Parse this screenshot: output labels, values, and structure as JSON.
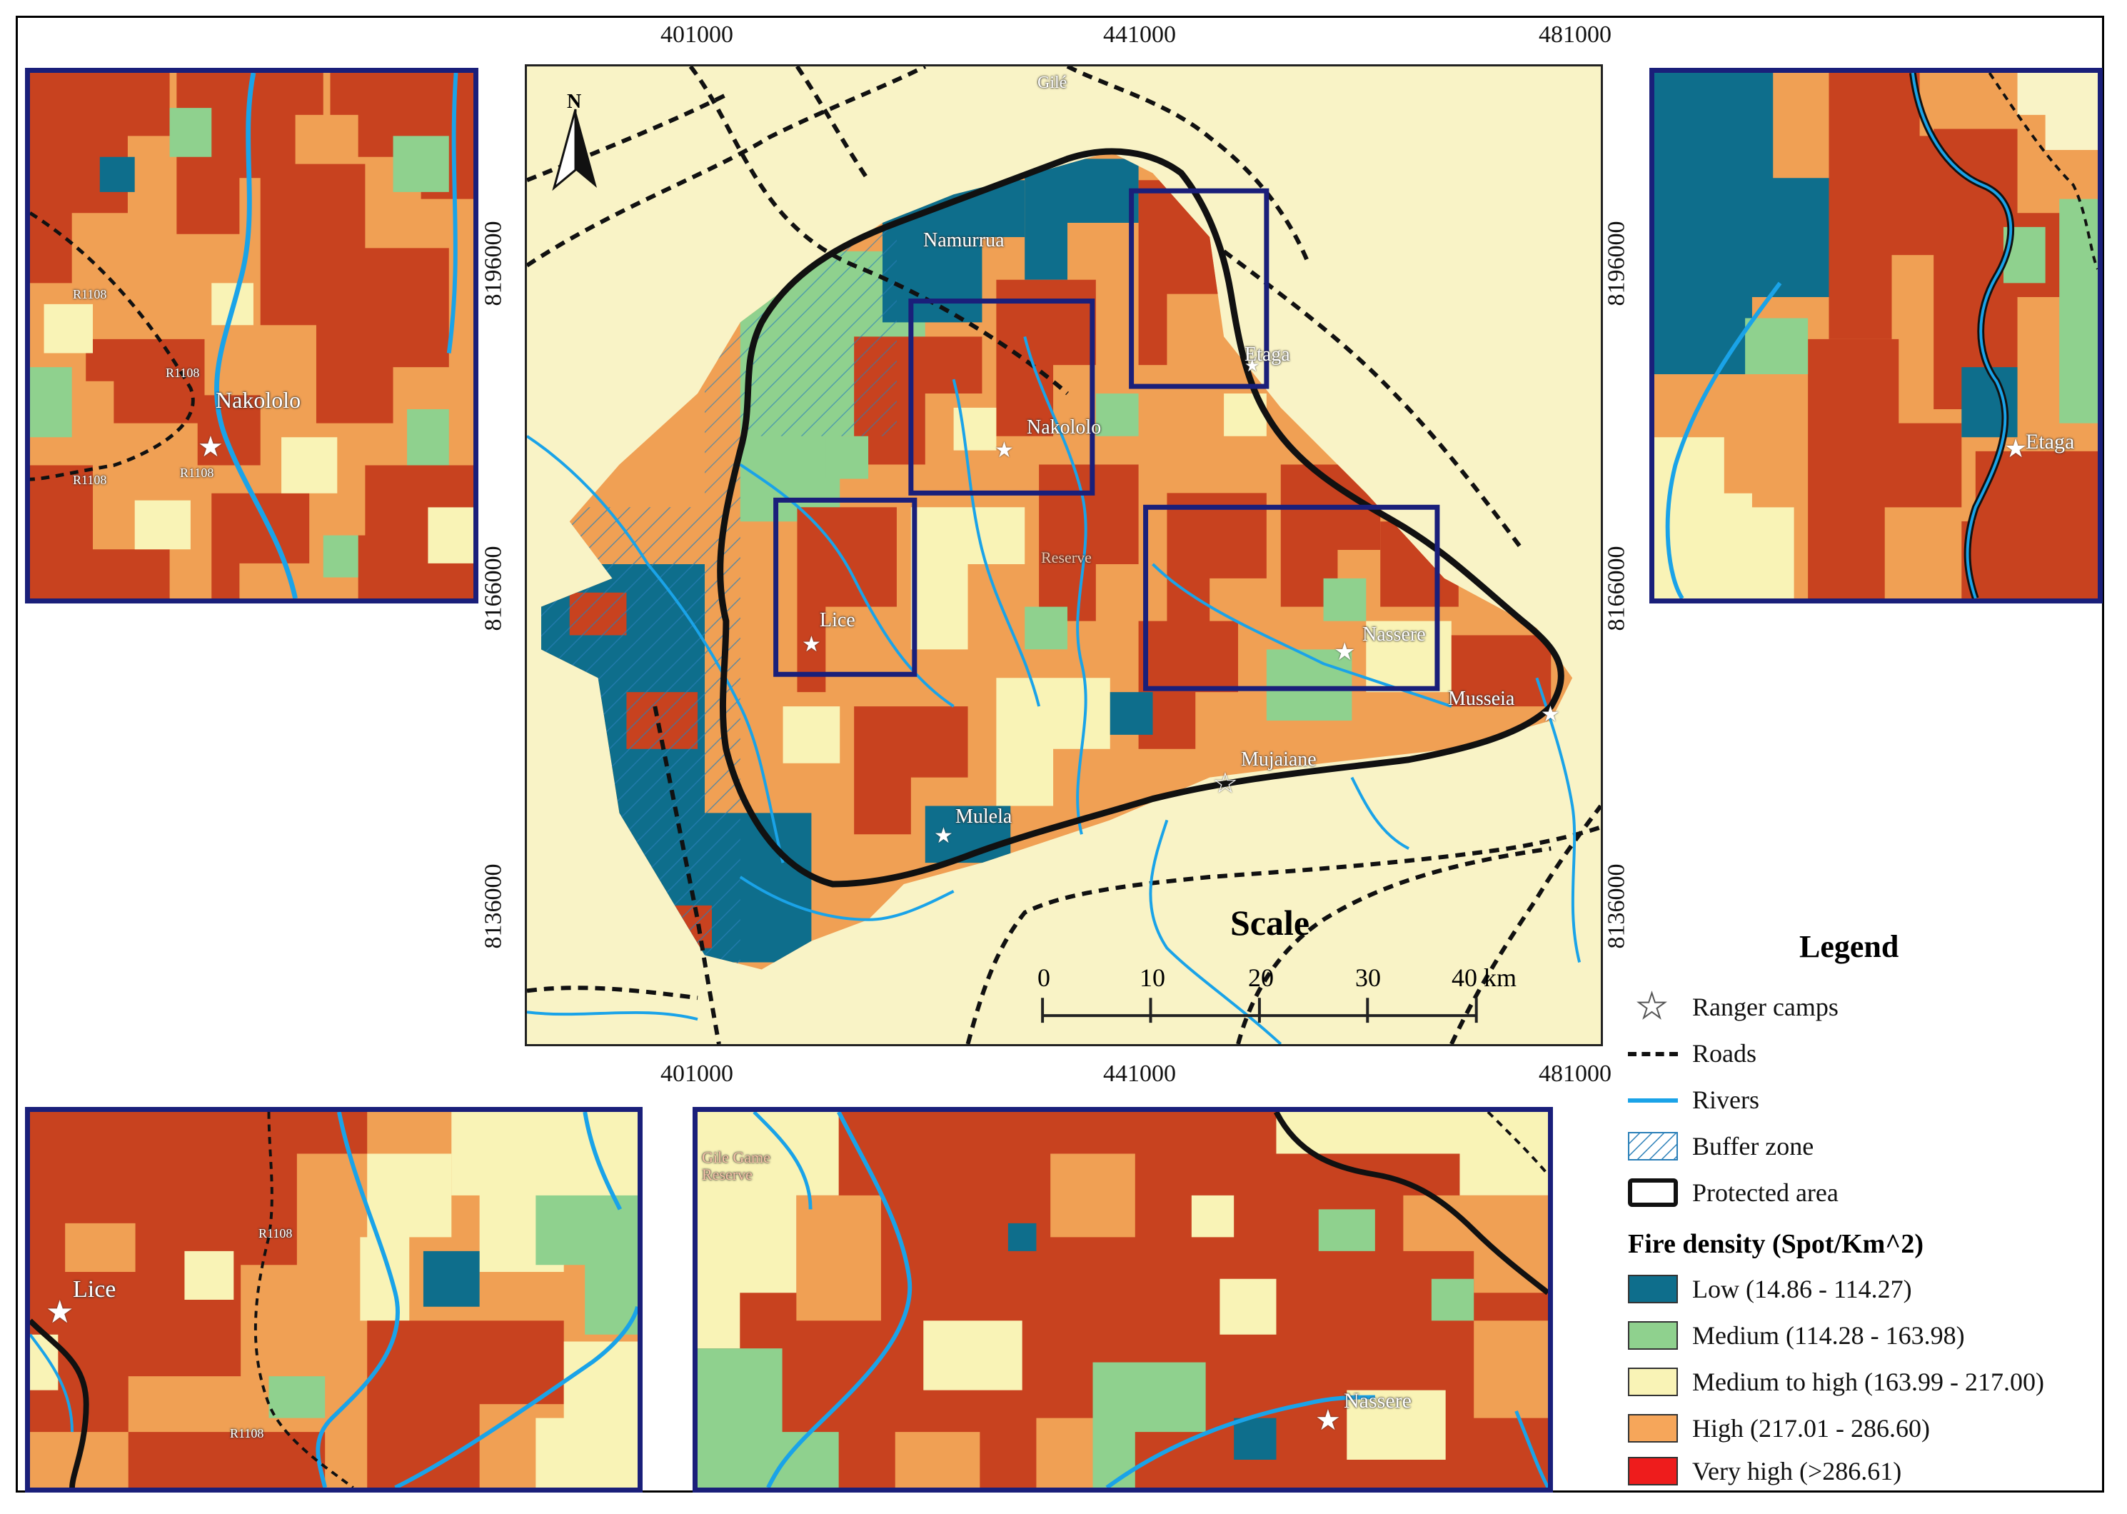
{
  "main_map": {
    "x_ticks_top": [
      "401000",
      "441000",
      "481000"
    ],
    "x_ticks_bottom": [
      "401000",
      "441000",
      "481000"
    ],
    "y_ticks_left": [
      "8196000",
      "8166000",
      "8136000"
    ],
    "y_ticks_right": [
      "8196000",
      "8166000",
      "8136000"
    ],
    "north_label": "N",
    "places": {
      "gile": "Gilé",
      "namurrua": "Namurrua",
      "etaga": "Etaga",
      "nakololo": "Nakololo",
      "reserve": "Reserve",
      "lice": "Lice",
      "nassere": "Nassere",
      "musseia": "Musseia",
      "mujaiane": "Mujaiane",
      "mulela": "Mulela"
    }
  },
  "scale": {
    "title": "Scale",
    "labels": [
      "0",
      "10",
      "20",
      "30",
      "40 km"
    ]
  },
  "insets": {
    "top_left": {
      "place": "Nakololo",
      "roads": [
        "R1108",
        "R1108",
        "R1108",
        "R1108"
      ]
    },
    "top_right": {
      "place": "Etaga"
    },
    "bottom_left": {
      "place": "Lice",
      "roads": [
        "R1108",
        "R1108"
      ]
    },
    "bottom_right": {
      "place": "Nassere",
      "reserve_label": "Gile Game Reserve"
    }
  },
  "legend": {
    "title": "Legend",
    "items": [
      {
        "label": "Ranger camps",
        "symbol": "star-icon"
      },
      {
        "label": "Roads",
        "symbol": "dashed-line"
      },
      {
        "label": "Rivers",
        "symbol": "river-line",
        "color": "#1aa3e8"
      },
      {
        "label": "Buffer zone",
        "symbol": "hatch"
      },
      {
        "label": "Protected area",
        "symbol": "outline-box"
      }
    ],
    "fire_density_title": "Fire density (Spot/Km^2)",
    "classes": [
      {
        "label": "Low (14.86 - 114.27)",
        "color": "#0e6e8c"
      },
      {
        "label": "Medium (114.28 - 163.98)",
        "color": "#8fd18e"
      },
      {
        "label": "Medium to high (163.99 - 217.00)",
        "color": "#f9f3b6"
      },
      {
        "label": "High (217.01 - 286.60)",
        "color": "#f6a65a"
      },
      {
        "label": "Very high (>286.61)",
        "color": "#ee1c1c"
      }
    ]
  },
  "colors": {
    "background": "#f9f3c6",
    "dark_red": "#c8421f",
    "orange": "#f0a054",
    "light_yellow": "#f9f3b6",
    "green": "#8fd18e",
    "teal": "#0e6e8c",
    "river": "#1aa3e8",
    "frame_blue": "#1a1f7a"
  }
}
